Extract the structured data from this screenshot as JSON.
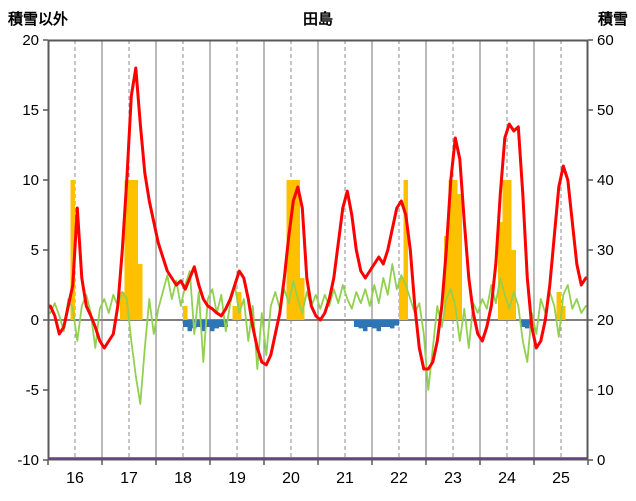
{
  "header": {
    "left_axis_title": "積雪以外",
    "chart_title": "田島",
    "right_axis_title": "積雪"
  },
  "chart_data": {
    "type": "line",
    "title": "田島",
    "grid": "vertical-daily",
    "legend_position": "none",
    "left_axis": {
      "label": "積雪以外",
      "min": -10,
      "max": 20,
      "ticks": [
        20,
        15,
        10,
        5,
        0,
        -5,
        -10
      ]
    },
    "right_axis": {
      "label": "積雪",
      "min": 0,
      "max": 60,
      "ticks": [
        60,
        50,
        40,
        30,
        20,
        10,
        0
      ]
    },
    "x_axis": {
      "day_labels": [
        "16",
        "17",
        "18",
        "19",
        "20",
        "21",
        "22",
        "23",
        "24",
        "25"
      ],
      "points_per_day": 12,
      "hours_per_point": 2
    },
    "series": [
      {
        "name": "temperature-red-line",
        "kind": "line",
        "axis": "left",
        "color": "#ff0000",
        "width": 3,
        "values": [
          1,
          0.3,
          -1,
          -0.5,
          1,
          2.5,
          8,
          3,
          1,
          0.3,
          -0.5,
          -1.5,
          -2,
          -1.5,
          -1,
          1,
          5,
          10,
          16,
          18,
          14,
          10.5,
          8.5,
          7,
          5.5,
          4.5,
          3.5,
          3,
          2.5,
          2.8,
          2.2,
          3,
          3.8,
          2.5,
          1.5,
          1,
          0.8,
          0.5,
          0.3,
          0.8,
          1.5,
          2.5,
          3.5,
          3,
          1.5,
          -0.5,
          -2,
          -3,
          -3.2,
          -2.5,
          -1,
          0.5,
          3,
          6,
          8.5,
          9.5,
          8,
          3,
          1,
          0.3,
          0,
          0.5,
          1.5,
          3,
          5.5,
          8,
          9.2,
          7.5,
          5,
          3.5,
          3,
          3.5,
          4,
          4.5,
          4,
          5,
          6.5,
          8,
          8.5,
          7.5,
          5,
          1,
          -2,
          -3.5,
          -3.5,
          -3,
          -1.5,
          1,
          5,
          10,
          13,
          11.5,
          7,
          3,
          0.5,
          -1,
          -1.5,
          -0.5,
          1,
          4,
          9,
          13,
          14,
          13.5,
          13.8,
          9,
          3,
          -0.5,
          -2,
          -1.5,
          0,
          2.5,
          6,
          9.5,
          11,
          10,
          7,
          4,
          2.5,
          3
        ]
      },
      {
        "name": "green-line",
        "kind": "line",
        "axis": "left",
        "color": "#92d050",
        "width": 1.8,
        "values": [
          0.5,
          1.2,
          0.3,
          -0.8,
          1.5,
          0.8,
          -1.5,
          1,
          1.8,
          0.5,
          -2,
          0.8,
          1.5,
          0.5,
          1.8,
          1,
          2,
          1.5,
          -1.5,
          -4,
          -6,
          -2,
          1.5,
          -1,
          0.8,
          2,
          3.2,
          1.5,
          2.8,
          1,
          2.5,
          3.5,
          -1,
          2,
          -3,
          1.5,
          2.2,
          0.5,
          1.8,
          -0.8,
          1.2,
          2.5,
          0.5,
          1.5,
          -1.5,
          1,
          -3.5,
          0.5,
          -2.5,
          1,
          2,
          0.8,
          2.2,
          1.2,
          2.8,
          1.5,
          0.5,
          2,
          1,
          1.8,
          0.8,
          1.8,
          1,
          2.2,
          1.2,
          2.5,
          1.5,
          0.8,
          2,
          1.2,
          2.2,
          1,
          2.5,
          1.2,
          3,
          1.8,
          4,
          2.2,
          3.2,
          2.5,
          1.5,
          0.5,
          1.2,
          -1,
          -5,
          -2,
          1,
          -0.5,
          1.5,
          2.2,
          1,
          -1.5,
          0.8,
          -2,
          1.2,
          0.5,
          1.5,
          0.8,
          2.5,
          1.2,
          3,
          1.8,
          0.8,
          2,
          1,
          -1.5,
          -3,
          0.5,
          -1,
          1.5,
          0.5,
          2,
          1,
          -1.2,
          1.8,
          2.5,
          0.8,
          1.5,
          0.5,
          1
        ]
      },
      {
        "name": "sunshine-orange-bars",
        "kind": "bar-up",
        "axis": "left",
        "color": "#ffc000",
        "values": [
          0,
          0,
          0,
          0,
          0,
          10,
          0,
          0,
          0,
          0,
          0,
          0,
          0,
          0,
          0,
          0,
          2,
          10,
          10,
          10,
          4,
          0,
          0,
          0,
          0,
          0,
          0,
          0,
          0,
          0,
          1,
          0,
          0,
          0,
          0,
          0,
          0,
          0,
          0,
          0,
          0,
          1,
          2,
          0,
          0,
          0,
          0,
          0,
          0,
          0,
          0,
          0,
          0,
          10,
          10,
          10,
          3,
          0,
          0,
          0,
          0,
          0,
          0,
          0,
          0,
          0,
          0,
          0,
          0,
          0,
          0,
          0,
          0,
          0,
          0,
          0,
          0,
          0,
          3,
          10,
          0,
          0,
          0,
          0,
          0,
          0,
          0,
          0,
          6,
          10,
          10,
          9,
          0,
          0,
          0,
          0,
          0,
          0,
          0,
          0,
          7,
          10,
          10,
          5,
          0,
          0,
          0,
          0,
          0,
          0,
          0,
          0,
          0,
          2,
          1,
          0,
          0,
          0,
          0,
          0
        ]
      },
      {
        "name": "precipitation-blue-bars",
        "kind": "bar-down",
        "axis": "left",
        "color": "#2e75b6",
        "values": [
          0,
          0,
          0,
          0,
          0,
          0,
          0,
          0,
          0,
          0,
          0,
          0,
          0,
          0,
          0,
          0,
          0,
          0,
          0,
          0,
          0,
          0,
          0,
          0,
          0,
          0,
          0,
          0,
          0,
          0,
          0.5,
          0.8,
          0.6,
          0.5,
          0.8,
          0.5,
          0.8,
          0.6,
          0.5,
          0.5,
          0,
          0,
          0,
          0,
          0,
          0,
          0,
          0,
          0,
          0,
          0,
          0,
          0,
          0,
          0,
          0,
          0,
          0,
          0,
          0,
          0,
          0,
          0,
          0,
          0,
          0,
          0,
          0,
          0.5,
          0.6,
          0.8,
          0.5,
          0.6,
          0.8,
          0.5,
          0.5,
          0.6,
          0.4,
          0,
          0,
          0,
          0,
          0,
          0,
          0,
          0,
          0,
          0,
          0,
          0,
          0,
          0,
          0,
          0,
          0,
          0,
          0,
          0,
          0,
          0,
          0,
          0,
          0,
          0,
          0,
          0.5,
          0.6,
          0.4,
          0,
          0,
          0,
          0,
          0,
          0,
          0,
          0,
          0,
          0,
          0,
          0
        ]
      },
      {
        "name": "snow-depth-purple-line",
        "kind": "constant-line",
        "axis": "right",
        "color": "#7030a0",
        "width": 2.5,
        "constant_value": 0
      }
    ]
  },
  "colors": {
    "grid": "#8c8c8c",
    "zero_line": "#808080",
    "frame": "#595959",
    "text": "#000000",
    "background": "#ffffff"
  }
}
